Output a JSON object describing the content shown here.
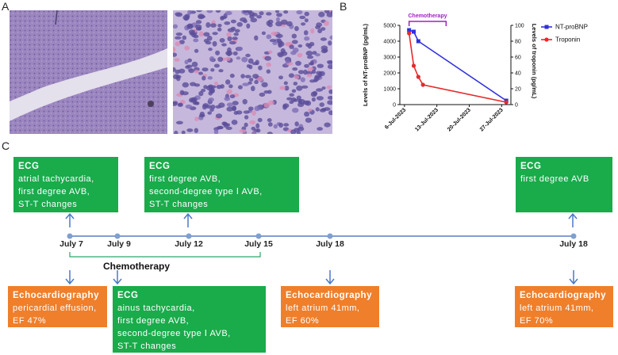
{
  "panels": {
    "a": "A",
    "b": "B",
    "c": "C"
  },
  "chart_data": {
    "type": "line",
    "x_ticks": [
      "6-Jul-2023",
      "13-Jul-2023",
      "20-Jul-2023",
      "27-Jul-2023"
    ],
    "y_left_label": "Levels of NT-proBNP (pg/mL)",
    "y_right_label": "Levels of troponin (pg/mL)",
    "y_left_ticks": [
      "0",
      "1000",
      "2000",
      "3000",
      "4000",
      "5000"
    ],
    "y_right_ticks": [
      "0",
      "20",
      "40",
      "60",
      "80",
      "100"
    ],
    "y_left_lim": [
      0,
      5000
    ],
    "y_right_lim": [
      0,
      100
    ],
    "annotation": "Chemotherapy",
    "series": [
      {
        "name": "NT-proBNP",
        "color": "#3030dd",
        "axis": "left",
        "points": [
          [
            "2023-07-07",
            4700
          ],
          [
            "2023-07-08",
            4600
          ],
          [
            "2023-07-09",
            4000
          ],
          [
            "2023-07-28",
            250
          ]
        ]
      },
      {
        "name": "Troponin",
        "color": "#e52b2b",
        "axis": "right",
        "points": [
          [
            "2023-07-07",
            90
          ],
          [
            "2023-07-08",
            49
          ],
          [
            "2023-07-09",
            35
          ],
          [
            "2023-07-10",
            25
          ],
          [
            "2023-07-28",
            3
          ]
        ]
      }
    ]
  },
  "timeline": {
    "chemo_label": "Chemotherapy",
    "dates": [
      "July 7",
      "July 9",
      "July 12",
      "July 15",
      "July 18",
      "July 18"
    ],
    "top_boxes": [
      {
        "title": "ECG",
        "lines": [
          "atrial tachycardia,",
          "first degree AVB,",
          "ST-T changes"
        ]
      },
      {
        "title": "ECG",
        "lines": [
          "first degree AVB,",
          "second-degree type Ⅰ AVB,",
          "ST-T changes"
        ]
      },
      {
        "title": "ECG",
        "lines": [
          "first degree AVB"
        ]
      }
    ],
    "bottom_boxes": [
      {
        "title": "Echocardiography",
        "lines": [
          "pericardial effusion,",
          "EF 47%"
        ]
      },
      {
        "title": "ECG",
        "lines": [
          "ainus tachycardia,",
          "first degree AVB,",
          "second-degree type Ⅰ AVB,",
          "ST-T changes"
        ]
      },
      {
        "title": "Echocardiography",
        "lines": [
          "left atrium 41mm,",
          "EF 60%"
        ]
      },
      {
        "title": "Echocardiography",
        "lines": [
          "left atrium 41mm,",
          "EF 70%"
        ]
      }
    ]
  }
}
